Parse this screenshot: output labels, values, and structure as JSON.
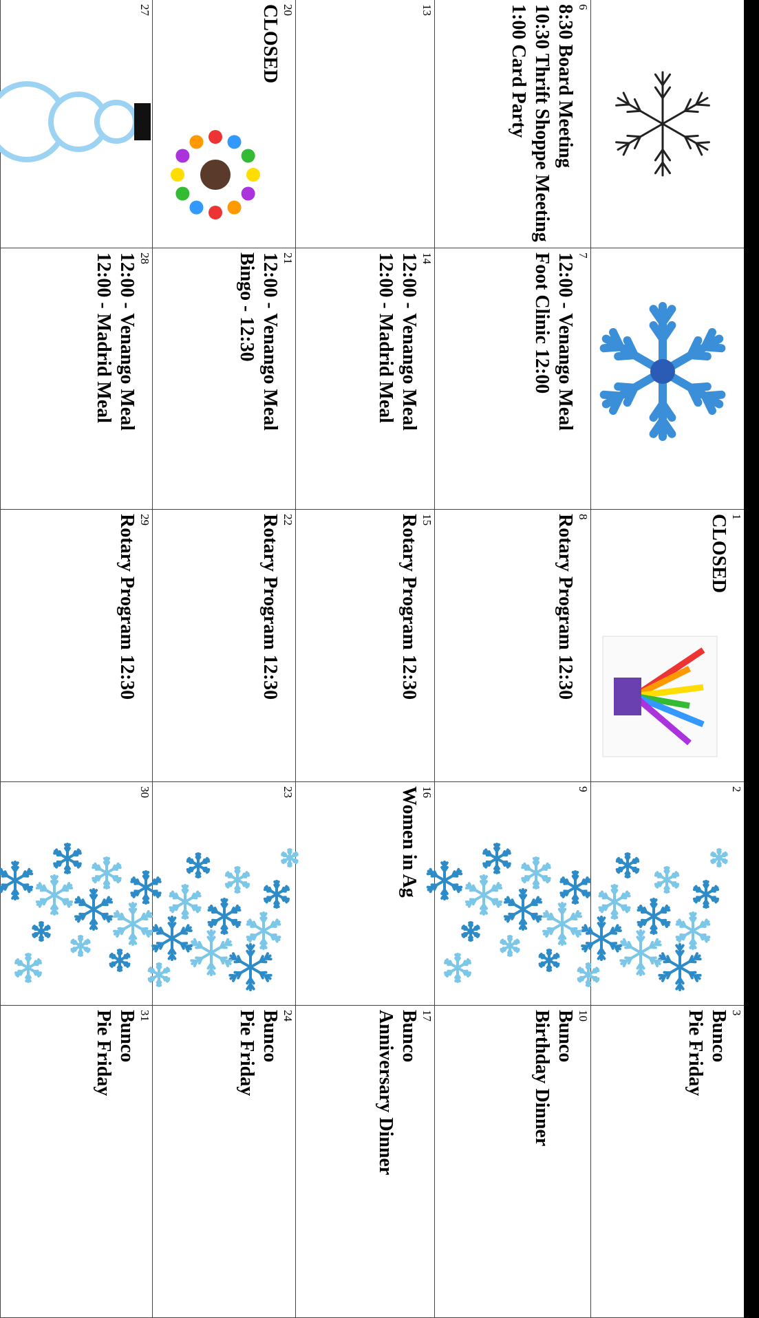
{
  "calendar": {
    "weeks": [
      {
        "days": [
          {
            "lines": []
          },
          {
            "lines": []
          },
          {
            "day": "1",
            "lines": [
              "CLOSED"
            ]
          },
          {
            "day": "2",
            "lines": []
          },
          {
            "day": "3",
            "lines": [
              "Bunco",
              "Pie Friday"
            ]
          }
        ]
      },
      {
        "days": [
          {
            "day": "6",
            "lines": [
              "8:30 Board Meeting",
              "10:30 Thrift Shoppe Meeting",
              "1:00 Card Party"
            ]
          },
          {
            "day": "7",
            "lines": [
              "12:00 - Venango Meal",
              "Foot Clinic 12:00"
            ]
          },
          {
            "day": "8",
            "lines": [
              "Rotary Program 12:30"
            ]
          },
          {
            "day": "9",
            "lines": []
          },
          {
            "day": "10",
            "lines": [
              "Bunco",
              "Birthday Dinner"
            ]
          }
        ]
      },
      {
        "days": [
          {
            "day": "13",
            "lines": []
          },
          {
            "day": "14",
            "lines": [
              "12:00 - Venango Meal",
              "12:00 - Madrid Meal"
            ]
          },
          {
            "day": "15",
            "lines": [
              "Rotary Program 12:30"
            ]
          },
          {
            "day": "16",
            "lines": [
              "Women in Ag"
            ]
          },
          {
            "day": "17",
            "lines": [
              "Bunco",
              "Anniversary Dinner"
            ]
          }
        ]
      },
      {
        "days": [
          {
            "day": "20",
            "lines": [
              "CLOSED"
            ]
          },
          {
            "day": "21",
            "lines": [
              "12:00 - Venango Meal",
              "Bingo - 12:30"
            ]
          },
          {
            "day": "22",
            "lines": [
              "Rotary Program 12:30"
            ]
          },
          {
            "day": "23",
            "lines": []
          },
          {
            "day": "24",
            "lines": [
              "Bunco",
              "Pie Friday"
            ]
          }
        ]
      },
      {
        "days": [
          {
            "day": "27",
            "lines": []
          },
          {
            "day": "28",
            "lines": [
              "12:00 - Venango Meal",
              "12:00 - Madrid Meal"
            ]
          },
          {
            "day": "29",
            "lines": [
              "Rotary Program 12:30"
            ]
          },
          {
            "day": "30",
            "lines": []
          },
          {
            "day": "31",
            "lines": [
              "Bunco",
              "Pie Friday"
            ]
          }
        ]
      }
    ]
  }
}
